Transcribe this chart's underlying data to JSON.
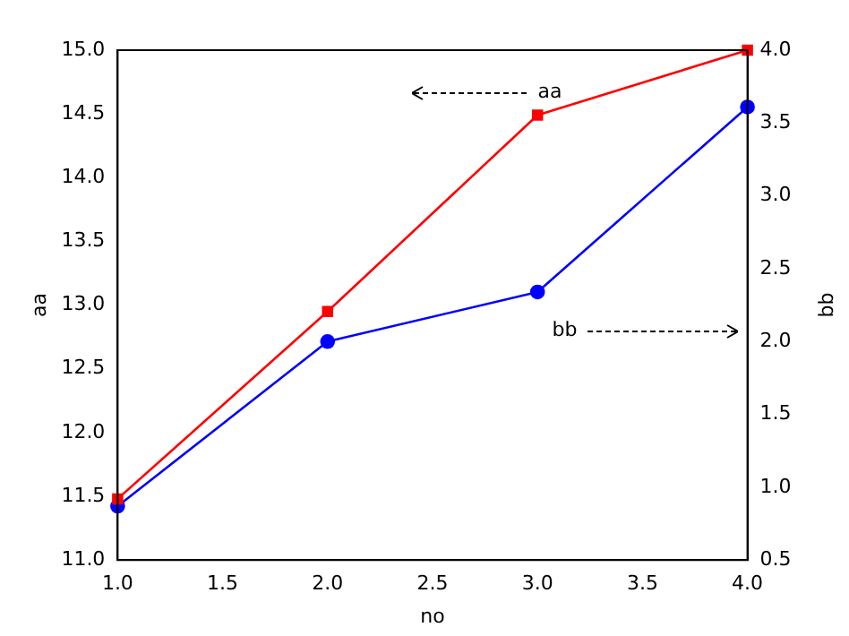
{
  "chart_data": {
    "type": "line",
    "xlabel": "no",
    "ylabel": "aa",
    "y2label": "bb",
    "x": [
      1,
      2,
      3,
      4
    ],
    "series": [
      {
        "color": "#ff0000",
        "values": [
          11.48,
          12.95,
          14.49,
          15.0
        ],
        "marker": "square"
      },
      {
        "color": "#0000ff",
        "values": [
          0.87,
          2.0,
          2.34,
          3.61
        ],
        "marker": "circle",
        "axis": "y2"
      }
    ],
    "xlim": [
      1.0,
      4.0
    ],
    "xticks": [
      {
        "value": 1,
        "label": "1.0"
      },
      1.5,
      {
        "value": 2,
        "label": "2.0"
      },
      2.5,
      {
        "value": 3,
        "label": "3.0"
      },
      3.5,
      {
        "value": 4,
        "label": "4.0"
      }
    ],
    "ylim": [
      11.0,
      15.0
    ],
    "yticks": [
      {
        "value": 11,
        "label": "11.0"
      },
      11.5,
      {
        "value": 12,
        "label": "12.0"
      },
      12.5,
      {
        "value": 13,
        "label": "13.0"
      },
      13.5,
      {
        "value": 14,
        "label": "14.0"
      },
      14.5,
      {
        "value": 15,
        "label": "15.0"
      }
    ],
    "y2lim": [
      0.5,
      4.0
    ],
    "y2ticks": [
      0.5,
      {
        "value": 1,
        "label": "1.0"
      },
      1.5,
      {
        "value": 2,
        "label": "2.0"
      },
      2.5,
      {
        "value": 3,
        "label": "3.0"
      },
      3.5,
      {
        "value": 4,
        "label": "4.0"
      }
    ],
    "annotations": [
      "aa",
      "bb"
    ],
    "grid": false,
    "legend": false
  }
}
